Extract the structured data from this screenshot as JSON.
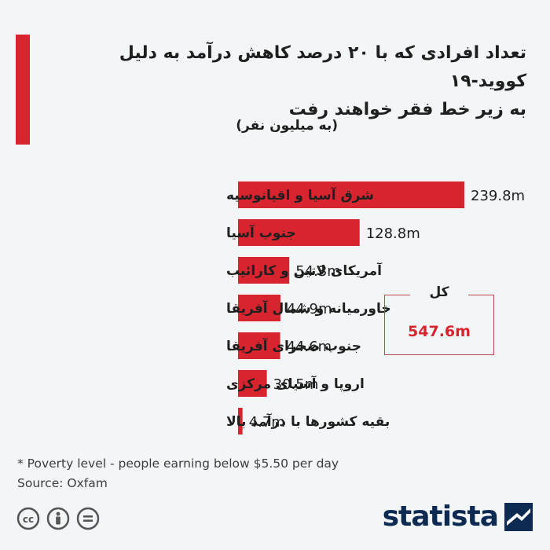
{
  "title_lines": [
    "تعداد افرادی که با ۲۰ درصد کاهش درآمد به دلیل کووید-۱۹",
    "به زیر خط فقر خواهند رفت"
  ],
  "unit_label": "(به میلیون نفر)",
  "chart_data": {
    "type": "bar",
    "orientation": "horizontal",
    "categories": [
      "شرق آسیا و اقیانوسیه",
      "جنوب آسیا",
      "آمریکای لاتین و کارائیب",
      "خاورمیانه و شمال آفریقا",
      "جنوب صحرای آفریقا",
      "اروپا و آسیای مرکزی",
      "بقیه کشورها با درآمد بالا"
    ],
    "values": [
      239.8,
      128.8,
      54.3,
      44.9,
      44.6,
      30.5,
      4.7
    ],
    "value_labels": [
      "239.8m",
      "128.8m",
      "54.3m",
      "44.9m",
      "44.6m",
      "30.5m",
      "4.7m"
    ],
    "xlim": [
      0,
      239.8
    ],
    "bar_color": "#d7242f",
    "grid": false
  },
  "total": {
    "label": "کل",
    "value": "547.6m",
    "color": "#d7242f"
  },
  "footnote": "* Poverty level - people earning below $5.50 per day",
  "source": "Source: Oxfam",
  "license_icons": [
    "cc-icon",
    "by-icon",
    "nd-icon"
  ],
  "brand": {
    "name": "statista",
    "color": "#0d2a52"
  }
}
